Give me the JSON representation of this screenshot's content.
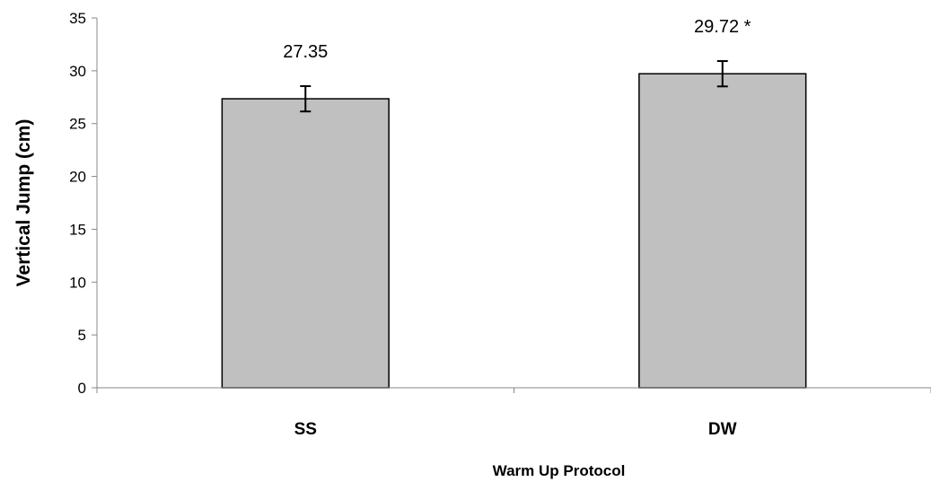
{
  "chart_data": {
    "type": "bar",
    "categories": [
      "SS",
      "DW"
    ],
    "values": [
      27.35,
      29.72
    ],
    "error": [
      1.2,
      1.2
    ],
    "data_labels": [
      "27.35",
      "29.72 *"
    ],
    "xlabel": "Warm Up Protocol",
    "ylabel": "Vertical Jump (cm)",
    "ylim": [
      0,
      35
    ],
    "yticks": [
      0,
      5,
      10,
      15,
      20,
      25,
      30,
      35
    ],
    "grid": false,
    "bar_color": "#c0c0c0",
    "bar_edge_color": "#000000"
  }
}
